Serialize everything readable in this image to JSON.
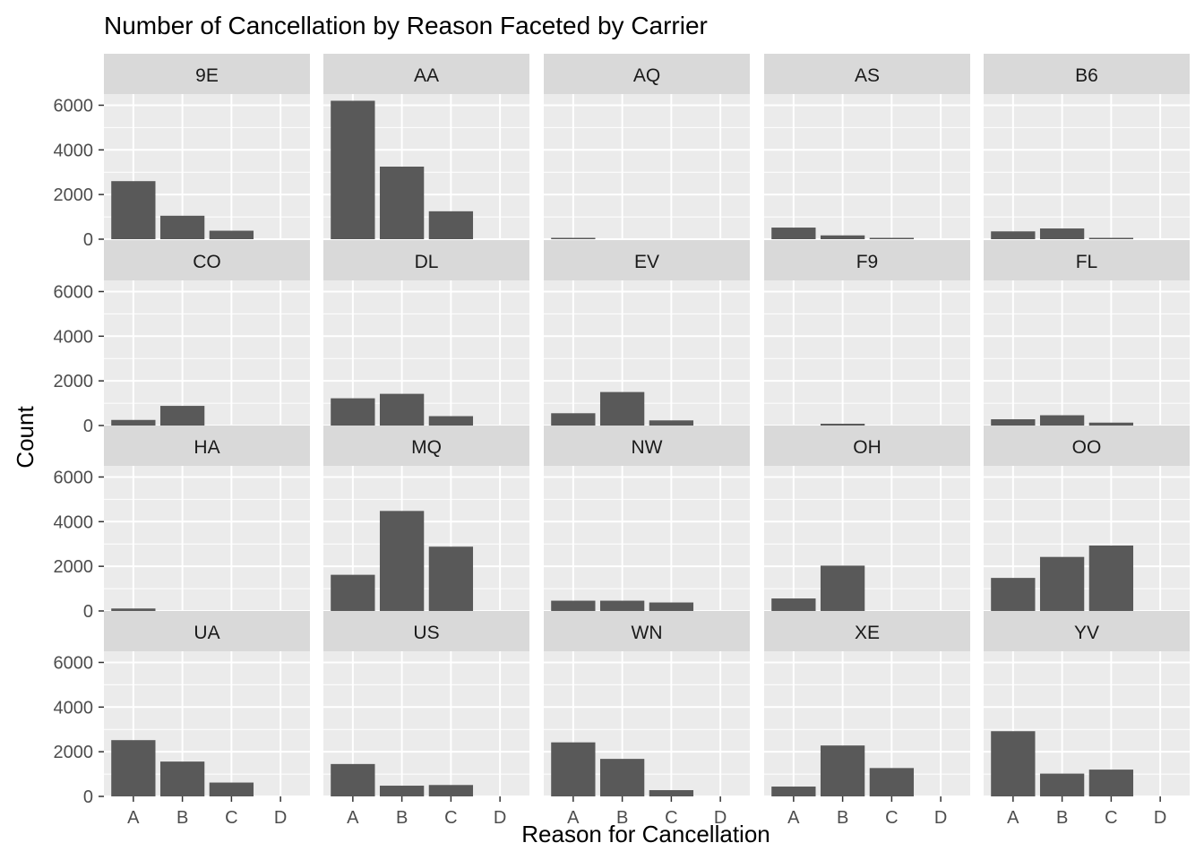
{
  "chart_data": {
    "type": "bar",
    "title": "Number of Cancellation by Reason Faceted by Carrier",
    "xlabel": "Reason for Cancellation",
    "ylabel": "Count",
    "categories": [
      "A",
      "B",
      "C",
      "D"
    ],
    "y_ticks": [
      "0",
      "2000",
      "4000",
      "6000"
    ],
    "ylim": [
      0,
      6500
    ],
    "facet_columns": 5,
    "grid": true,
    "panel_background": "#ebebeb",
    "strip_background": "#d9d9d9",
    "bar_color": "#595959",
    "facets": [
      {
        "name": "9E",
        "values": [
          2600,
          1050,
          380,
          0
        ]
      },
      {
        "name": "AA",
        "values": [
          6200,
          3250,
          1250,
          0
        ]
      },
      {
        "name": "AQ",
        "values": [
          30,
          0,
          0,
          0
        ]
      },
      {
        "name": "AS",
        "values": [
          520,
          170,
          40,
          0
        ]
      },
      {
        "name": "B6",
        "values": [
          350,
          480,
          30,
          0
        ]
      },
      {
        "name": "CO",
        "values": [
          250,
          880,
          0,
          0
        ]
      },
      {
        "name": "DL",
        "values": [
          1220,
          1420,
          420,
          0
        ]
      },
      {
        "name": "EV",
        "values": [
          550,
          1500,
          230,
          0
        ]
      },
      {
        "name": "F9",
        "values": [
          0,
          80,
          0,
          0
        ]
      },
      {
        "name": "FL",
        "values": [
          280,
          460,
          130,
          0
        ]
      },
      {
        "name": "HA",
        "values": [
          110,
          0,
          0,
          0
        ]
      },
      {
        "name": "MQ",
        "values": [
          1620,
          4480,
          2880,
          0
        ]
      },
      {
        "name": "NW",
        "values": [
          460,
          460,
          380,
          0
        ]
      },
      {
        "name": "OH",
        "values": [
          560,
          2030,
          0,
          0
        ]
      },
      {
        "name": "OO",
        "values": [
          1480,
          2420,
          2930,
          0
        ]
      },
      {
        "name": "UA",
        "values": [
          2520,
          1560,
          620,
          0
        ]
      },
      {
        "name": "US",
        "values": [
          1450,
          480,
          510,
          0
        ]
      },
      {
        "name": "WN",
        "values": [
          2420,
          1680,
          280,
          0
        ]
      },
      {
        "name": "XE",
        "values": [
          440,
          2280,
          1270,
          0
        ]
      },
      {
        "name": "YV",
        "values": [
          2920,
          1020,
          1200,
          0
        ]
      }
    ]
  }
}
